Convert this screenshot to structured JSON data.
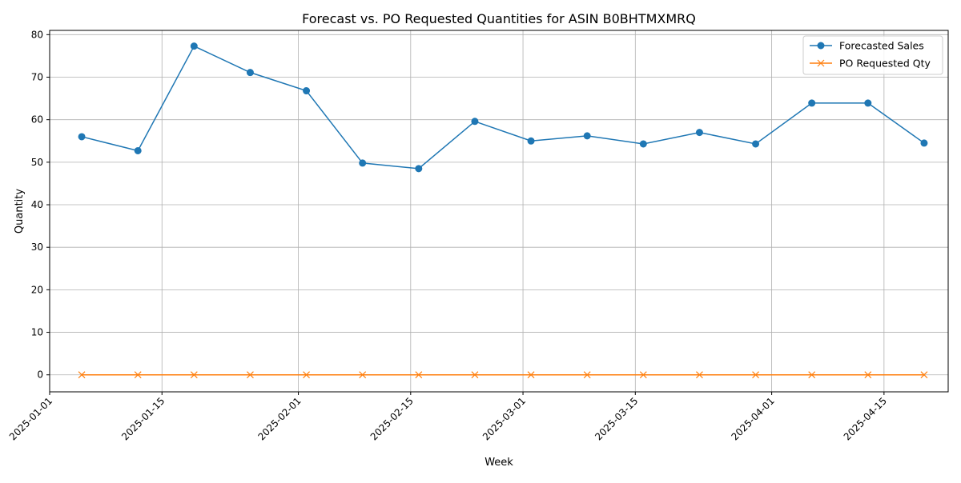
{
  "chart_data": {
    "type": "line",
    "title": "Forecast vs. PO Requested Quantities for ASIN B0BHTMXMRQ",
    "xlabel": "Week",
    "ylabel": "Quantity",
    "x": [
      "2025-01-05",
      "2025-01-12",
      "2025-01-19",
      "2025-01-26",
      "2025-02-02",
      "2025-02-09",
      "2025-02-16",
      "2025-02-23",
      "2025-03-02",
      "2025-03-09",
      "2025-03-16",
      "2025-03-23",
      "2025-03-30",
      "2025-04-06",
      "2025-04-13",
      "2025-04-20"
    ],
    "x_ticks": [
      "2025-01-01",
      "2025-01-15",
      "2025-02-01",
      "2025-02-15",
      "2025-03-01",
      "2025-03-15",
      "2025-04-01",
      "2025-04-15"
    ],
    "xlim": [
      "2025-01-01",
      "2025-04-23"
    ],
    "ylim": [
      -4,
      81
    ],
    "y_ticks": [
      0,
      10,
      20,
      30,
      40,
      50,
      60,
      70,
      80
    ],
    "grid": true,
    "legend_position": "top-right",
    "series": [
      {
        "name": "Forecasted Sales",
        "color": "#1f77b4",
        "marker": "circle",
        "values": [
          56.0,
          52.7,
          77.3,
          71.1,
          66.8,
          49.8,
          48.5,
          59.6,
          55.0,
          56.2,
          54.3,
          57.0,
          54.3,
          63.9,
          63.9,
          54.5
        ]
      },
      {
        "name": "PO Requested Qty",
        "color": "#ff7f0e",
        "marker": "x",
        "values": [
          0,
          0,
          0,
          0,
          0,
          0,
          0,
          0,
          0,
          0,
          0,
          0,
          0,
          0,
          0,
          0
        ]
      }
    ]
  }
}
